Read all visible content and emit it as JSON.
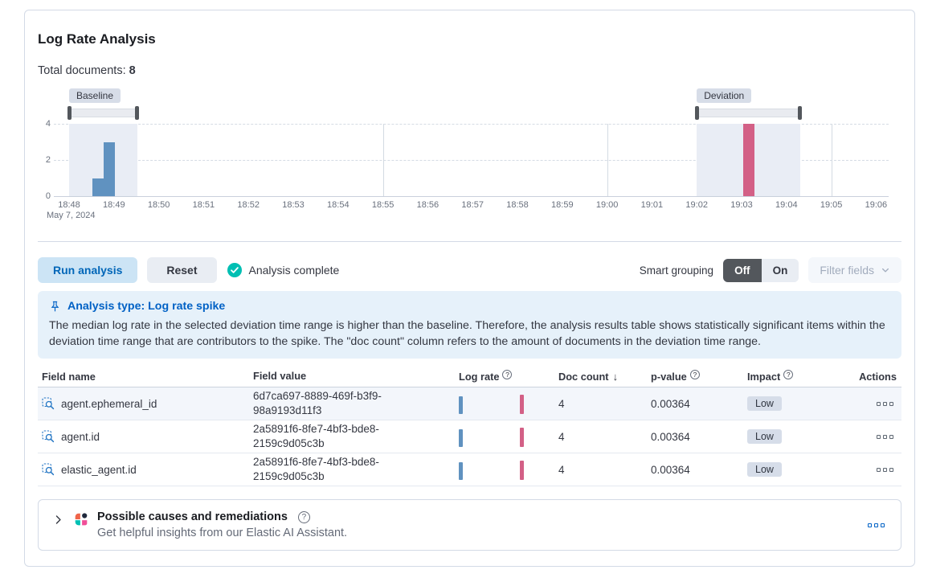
{
  "panel": {
    "title": "Log Rate Analysis",
    "total_documents_label": "Total documents:",
    "total_documents_value": "8"
  },
  "chart_data": {
    "type": "bar",
    "x_ticks": [
      "18:48",
      "18:49",
      "18:50",
      "18:51",
      "18:52",
      "18:53",
      "18:54",
      "18:55",
      "18:56",
      "18:57",
      "18:58",
      "18:59",
      "19:00",
      "19:01",
      "19:02",
      "19:03",
      "19:04",
      "19:05",
      "19:06"
    ],
    "x_secondary_label": "May 7, 2024",
    "y_ticks": [
      0,
      2,
      4
    ],
    "ylim": [
      0,
      4
    ],
    "h_gridline_values": [
      2,
      4
    ],
    "v_gridline_ticks": [
      7,
      12,
      17
    ],
    "baseline": {
      "label": "Baseline",
      "window_start_tick": 0.0,
      "window_end_tick": 1.52,
      "color": "#6092C0",
      "bars": [
        {
          "tick": 0.52,
          "value": 1
        },
        {
          "tick": 0.77,
          "value": 3
        }
      ]
    },
    "deviation": {
      "label": "Deviation",
      "window_start_tick": 14.0,
      "window_end_tick": 16.3,
      "color": "#D36086",
      "bars": [
        {
          "tick": 15.04,
          "value": 4
        }
      ]
    },
    "region_fill": "#E9EDF5"
  },
  "toolbar": {
    "run_analysis_label": "Run analysis",
    "reset_label": "Reset",
    "status_text": "Analysis complete",
    "smart_grouping_label": "Smart grouping",
    "grouping_off_label": "Off",
    "grouping_on_label": "On",
    "grouping_selected": "Off",
    "filter_fields_label": "Filter fields"
  },
  "callout": {
    "title": "Analysis type: Log rate spike",
    "body": "The median log rate in the selected deviation time range is higher than the baseline. Therefore, the analysis results table shows statistically significant items within the deviation time range that are contributors to the spike. The \"doc count\" column refers to the amount of documents in the deviation time range."
  },
  "table": {
    "columns": [
      {
        "label": "Field name"
      },
      {
        "label": "Field value"
      },
      {
        "label": "Log rate",
        "info": true
      },
      {
        "label": "Doc count",
        "sort": "desc"
      },
      {
        "label": "p-value",
        "info": true
      },
      {
        "label": "Impact",
        "info": true
      },
      {
        "label": "Actions"
      }
    ],
    "rows": [
      {
        "field_name": "agent.ephemeral_id",
        "field_value": "6d7ca697-8889-469f-b3f9-98a9193d11f3",
        "doc_count": "4",
        "p_value": "0.00364",
        "impact": "Low"
      },
      {
        "field_name": "agent.id",
        "field_value": "2a5891f6-8fe7-4bf3-bde8-2159c9d05c3b",
        "doc_count": "4",
        "p_value": "0.00364",
        "impact": "Low"
      },
      {
        "field_name": "elastic_agent.id",
        "field_value": "2a5891f6-8fe7-4bf3-bde8-2159c9d05c3b",
        "doc_count": "4",
        "p_value": "0.00364",
        "impact": "Low"
      }
    ]
  },
  "ai_panel": {
    "title": "Possible causes and remediations",
    "subtitle": "Get helpful insights from our Elastic AI Assistant."
  },
  "colors": {
    "baseline_bar": "#6092C0",
    "deviation_bar": "#D36086",
    "accent_primary": "#0061C5",
    "success_check": "#00BFB3",
    "callout_bg": "#E6F1FA"
  }
}
